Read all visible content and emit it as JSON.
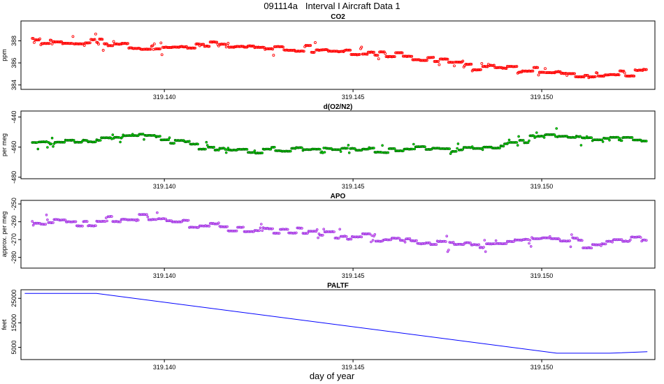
{
  "title": "091114a   Interval I Aircraft Data 1",
  "x_axis_label": "day of year",
  "colors": {
    "co2": "#ff0000",
    "o2n2_fill": "#00dd00",
    "o2n2_outline": "#006400",
    "apo_fill": "#ee82ee",
    "apo_outline": "#8a2be2",
    "paltf": "#0000ff"
  },
  "chart_data": [
    {
      "id": "co2",
      "type": "scatter",
      "title": "CO2",
      "xlabel": "",
      "ylabel": "ppm",
      "xlim": [
        319.1362,
        319.153
      ],
      "ylim": [
        383.6,
        389.8
      ],
      "xticks": [
        "319.140",
        "319.145",
        "319.150"
      ],
      "yticks": [
        "384",
        "386",
        "388"
      ],
      "series": [
        {
          "name": "CO2",
          "x": [
            319.1365,
            319.138,
            319.1395,
            319.141,
            319.1425,
            319.144,
            319.1455,
            319.147,
            319.1485,
            319.15,
            319.1515,
            319.1528
          ],
          "y": [
            387.9,
            388.0,
            387.3,
            387.6,
            387.3,
            387.2,
            386.8,
            386.2,
            385.6,
            385.1,
            384.8,
            385.3
          ]
        }
      ]
    },
    {
      "id": "o2n2",
      "type": "scatter",
      "title": "d(O2/N2)",
      "xlabel": "",
      "ylabel": "per meg",
      "xlim": [
        319.1362,
        319.153
      ],
      "ylim": [
        -481,
        -436
      ],
      "xticks": [
        "319.140",
        "319.145",
        "319.150"
      ],
      "yticks": [
        "-480",
        "-460",
        "-440"
      ],
      "series": [
        {
          "name": "d(O2/N2)",
          "x": [
            319.1365,
            319.138,
            319.1395,
            319.141,
            319.1425,
            319.144,
            319.1455,
            319.147,
            319.1485,
            319.15,
            319.1515,
            319.1528
          ],
          "y": [
            -457,
            -456,
            -452,
            -460,
            -462,
            -461,
            -462,
            -461,
            -460,
            -453,
            -454,
            -455
          ]
        }
      ]
    },
    {
      "id": "apo",
      "type": "scatter",
      "title": "APO",
      "xlabel": "",
      "ylabel": "approx. per meg",
      "xlim": [
        319.1362,
        319.153
      ],
      "ylim": [
        -286,
        -248
      ],
      "xticks": [
        "319.140",
        "319.145",
        "319.150"
      ],
      "yticks": [
        "-280",
        "-270",
        "-260",
        "-250"
      ],
      "series": [
        {
          "name": "APO",
          "x": [
            319.1365,
            319.138,
            319.1395,
            319.141,
            319.1425,
            319.144,
            319.1455,
            319.147,
            319.1485,
            319.15,
            319.1515,
            319.1528
          ],
          "y": [
            -261,
            -260,
            -257,
            -262,
            -265,
            -266,
            -269,
            -272,
            -272,
            -270,
            -272,
            -270
          ]
        }
      ]
    },
    {
      "id": "paltf",
      "type": "line",
      "title": "PALTF",
      "xlabel": "day of year",
      "ylabel": "feet",
      "xlim": [
        319.1362,
        319.153
      ],
      "ylim": [
        0,
        28500
      ],
      "xticks": [
        "319.140",
        "319.145",
        "319.150"
      ],
      "yticks": [
        "5000",
        "15000",
        "25000"
      ],
      "series": [
        {
          "name": "PALTF",
          "x": [
            319.1363,
            319.1382,
            319.1504,
            319.1518,
            319.1528
          ],
          "y": [
            27000,
            27000,
            2600,
            2600,
            3200
          ]
        }
      ]
    }
  ]
}
